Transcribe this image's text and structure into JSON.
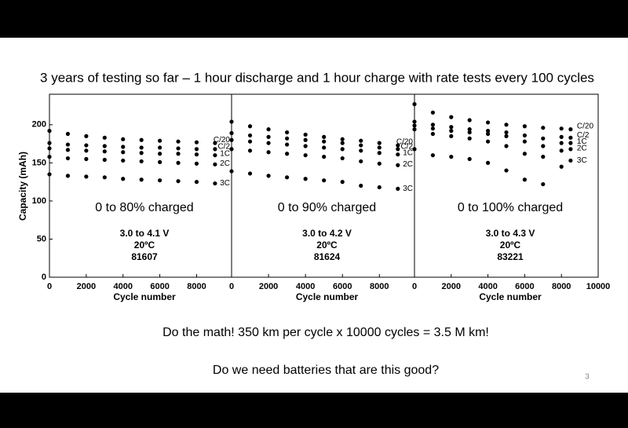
{
  "slide": {
    "title": "3 years of testing so far – 1 hour discharge and 1 hour charge with rate tests every 100 cycles",
    "lines": [
      "Do the math!  350 km per cycle x 10000 cycles = 3.5 M km!",
      "Do we need batteries that are this good?"
    ],
    "page_number": "3"
  },
  "chart_data": [
    {
      "type": "scatter",
      "y_label": "Capacity (mAh)",
      "x_label": "Cycle number",
      "annotations": [
        "0 to 80% charged",
        "3.0 to 4.1 V",
        "20ºC",
        "81607"
      ],
      "xlim": [
        0,
        9900
      ],
      "xticks": [
        0,
        2000,
        4000,
        6000,
        8000
      ],
      "ylim": [
        0,
        240
      ],
      "yticks": [
        0,
        50,
        100,
        150,
        200
      ],
      "x": [
        0,
        1000,
        2000,
        3000,
        4000,
        5000,
        6000,
        7000,
        8000,
        9000
      ],
      "series": [
        {
          "name": "C/20",
          "color": "#000000",
          "values": [
            192,
            188,
            185,
            183,
            181,
            180,
            179,
            178,
            177,
            176
          ]
        },
        {
          "name": "C/2",
          "color": "#000000",
          "values": [
            176,
            174,
            173,
            172,
            171,
            170,
            170,
            169,
            168,
            168
          ]
        },
        {
          "name": "1C",
          "color": "#000000",
          "values": [
            169,
            167,
            166,
            165,
            164,
            163,
            162,
            162,
            161,
            160
          ]
        },
        {
          "name": "2C",
          "color": "#000000",
          "values": [
            158,
            156,
            155,
            154,
            153,
            152,
            151,
            150,
            149,
            148
          ]
        },
        {
          "name": "3C",
          "color": "#000000",
          "values": [
            135,
            133,
            132,
            131,
            129,
            128,
            127,
            126,
            125,
            123
          ]
        }
      ]
    },
    {
      "type": "scatter",
      "x_label": "Cycle number",
      "annotations": [
        "0 to 90% charged",
        "3.0 to 4.2 V",
        "20ºC",
        "81624"
      ],
      "xlim": [
        0,
        9900
      ],
      "xticks": [
        0,
        2000,
        4000,
        6000,
        8000
      ],
      "ylim": [
        0,
        240
      ],
      "x": [
        0,
        1000,
        2000,
        3000,
        4000,
        5000,
        6000,
        7000,
        8000,
        9000
      ],
      "series": [
        {
          "name": "C/20",
          "color": "#000000",
          "values": [
            204,
            198,
            194,
            190,
            187,
            184,
            181,
            179,
            176,
            173
          ]
        },
        {
          "name": "C/2",
          "color": "#000000",
          "values": [
            189,
            186,
            184,
            182,
            180,
            178,
            176,
            173,
            170,
            168
          ]
        },
        {
          "name": "1C",
          "color": "#000000",
          "values": [
            180,
            178,
            176,
            174,
            172,
            170,
            168,
            166,
            163,
            161
          ]
        },
        {
          "name": "2C",
          "color": "#000000",
          "values": [
            168,
            166,
            164,
            162,
            160,
            158,
            156,
            152,
            149,
            147
          ]
        },
        {
          "name": "3C",
          "color": "#000000",
          "values": [
            139,
            136,
            133,
            131,
            129,
            127,
            125,
            120,
            118,
            116
          ]
        }
      ]
    },
    {
      "type": "scatter",
      "x_label": "Cycle number",
      "annotations": [
        "0 to 100% charged",
        "3.0 to 4.3 V",
        "20ºC",
        "83221"
      ],
      "xlim": [
        0,
        10000
      ],
      "xticks": [
        0,
        2000,
        4000,
        6000,
        8000,
        10000
      ],
      "ylim": [
        0,
        240
      ],
      "x": [
        0,
        1000,
        2000,
        3000,
        4000,
        5000,
        6000,
        7000,
        8000,
        8500
      ],
      "series": [
        {
          "name": "C/20",
          "color": "#000000",
          "values": [
            227,
            216,
            210,
            206,
            203,
            200,
            198,
            196,
            195,
            194
          ]
        },
        {
          "name": "C/2",
          "color": "#000000",
          "values": [
            204,
            200,
            197,
            194,
            192,
            190,
            186,
            182,
            184,
            183
          ]
        },
        {
          "name": "1C",
          "color": "#000000",
          "values": [
            199,
            195,
            192,
            190,
            188,
            185,
            178,
            172,
            176,
            176
          ]
        },
        {
          "name": "2C",
          "color": "#000000",
          "values": [
            194,
            188,
            185,
            182,
            178,
            172,
            162,
            158,
            166,
            168
          ]
        },
        {
          "name": "3C",
          "color": "#000000",
          "values": [
            168,
            160,
            158,
            155,
            150,
            140,
            128,
            122,
            145,
            153
          ]
        }
      ]
    }
  ]
}
